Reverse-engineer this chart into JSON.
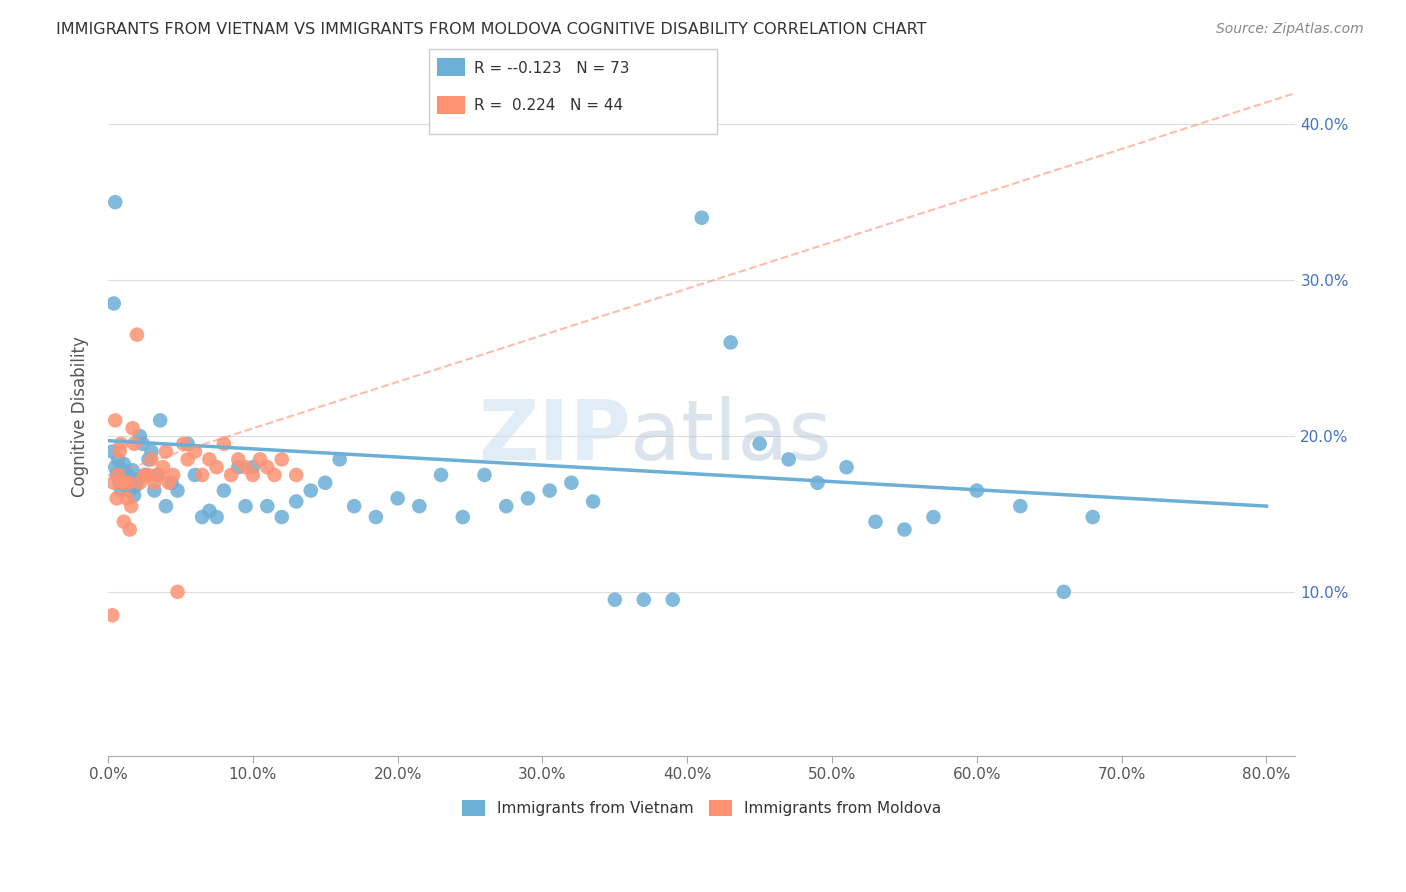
{
  "title": "IMMIGRANTS FROM VIETNAM VS IMMIGRANTS FROM MOLDOVA COGNITIVE DISABILITY CORRELATION CHART",
  "source": "Source: ZipAtlas.com",
  "ylabel": "Cognitive Disability",
  "xlim": [
    0.0,
    0.82
  ],
  "ylim": [
    -0.005,
    0.43
  ],
  "vietnam_color": "#6baed6",
  "moldova_color": "#fc9272",
  "legend_r_vietnam": "-0.123",
  "legend_n_vietnam": "73",
  "legend_r_moldova": "0.224",
  "legend_n_moldova": "44",
  "vietnam_x": [
    0.003,
    0.004,
    0.005,
    0.006,
    0.007,
    0.008,
    0.009,
    0.01,
    0.011,
    0.012,
    0.013,
    0.014,
    0.015,
    0.016,
    0.017,
    0.018,
    0.019,
    0.02,
    0.022,
    0.024,
    0.026,
    0.028,
    0.03,
    0.032,
    0.034,
    0.036,
    0.04,
    0.044,
    0.048,
    0.055,
    0.06,
    0.065,
    0.07,
    0.075,
    0.08,
    0.09,
    0.095,
    0.1,
    0.11,
    0.12,
    0.13,
    0.14,
    0.15,
    0.16,
    0.17,
    0.185,
    0.2,
    0.215,
    0.23,
    0.245,
    0.26,
    0.275,
    0.29,
    0.305,
    0.32,
    0.335,
    0.35,
    0.37,
    0.39,
    0.41,
    0.43,
    0.45,
    0.47,
    0.49,
    0.51,
    0.53,
    0.55,
    0.57,
    0.6,
    0.63,
    0.66,
    0.68,
    0.005
  ],
  "vietnam_y": [
    0.19,
    0.285,
    0.18,
    0.175,
    0.185,
    0.17,
    0.165,
    0.178,
    0.182,
    0.172,
    0.168,
    0.175,
    0.165,
    0.17,
    0.178,
    0.162,
    0.168,
    0.172,
    0.2,
    0.195,
    0.175,
    0.185,
    0.19,
    0.165,
    0.175,
    0.21,
    0.155,
    0.17,
    0.165,
    0.195,
    0.175,
    0.148,
    0.152,
    0.148,
    0.165,
    0.18,
    0.155,
    0.18,
    0.155,
    0.148,
    0.158,
    0.165,
    0.17,
    0.185,
    0.155,
    0.148,
    0.16,
    0.155,
    0.175,
    0.148,
    0.175,
    0.155,
    0.16,
    0.165,
    0.17,
    0.158,
    0.095,
    0.095,
    0.095,
    0.34,
    0.26,
    0.195,
    0.185,
    0.17,
    0.18,
    0.145,
    0.14,
    0.148,
    0.165,
    0.155,
    0.1,
    0.148,
    0.35
  ],
  "moldova_x": [
    0.003,
    0.004,
    0.005,
    0.006,
    0.007,
    0.008,
    0.009,
    0.01,
    0.011,
    0.012,
    0.013,
    0.014,
    0.015,
    0.016,
    0.017,
    0.018,
    0.02,
    0.022,
    0.025,
    0.028,
    0.03,
    0.032,
    0.035,
    0.038,
    0.04,
    0.042,
    0.045,
    0.048,
    0.052,
    0.055,
    0.06,
    0.065,
    0.07,
    0.075,
    0.08,
    0.085,
    0.09,
    0.095,
    0.1,
    0.105,
    0.11,
    0.115,
    0.12,
    0.13
  ],
  "moldova_y": [
    0.085,
    0.17,
    0.21,
    0.16,
    0.175,
    0.19,
    0.195,
    0.17,
    0.145,
    0.17,
    0.16,
    0.17,
    0.14,
    0.155,
    0.205,
    0.195,
    0.265,
    0.17,
    0.175,
    0.175,
    0.185,
    0.17,
    0.175,
    0.18,
    0.19,
    0.17,
    0.175,
    0.1,
    0.195,
    0.185,
    0.19,
    0.175,
    0.185,
    0.18,
    0.195,
    0.175,
    0.185,
    0.18,
    0.175,
    0.185,
    0.18,
    0.175,
    0.185,
    0.175
  ],
  "vietnam_line_x": [
    0.0,
    0.8
  ],
  "vietnam_line_y": [
    0.197,
    0.155
  ],
  "moldova_line_x": [
    0.0,
    0.82
  ],
  "moldova_line_y": [
    0.175,
    0.42
  ],
  "watermark_zip": "ZIP",
  "watermark_atlas": "atlas",
  "background_color": "#ffffff",
  "grid_color": "#dddddd",
  "xticks": [
    0.0,
    0.1,
    0.2,
    0.3,
    0.4,
    0.5,
    0.6,
    0.7,
    0.8
  ],
  "yticks": [
    0.1,
    0.2,
    0.3,
    0.4
  ]
}
